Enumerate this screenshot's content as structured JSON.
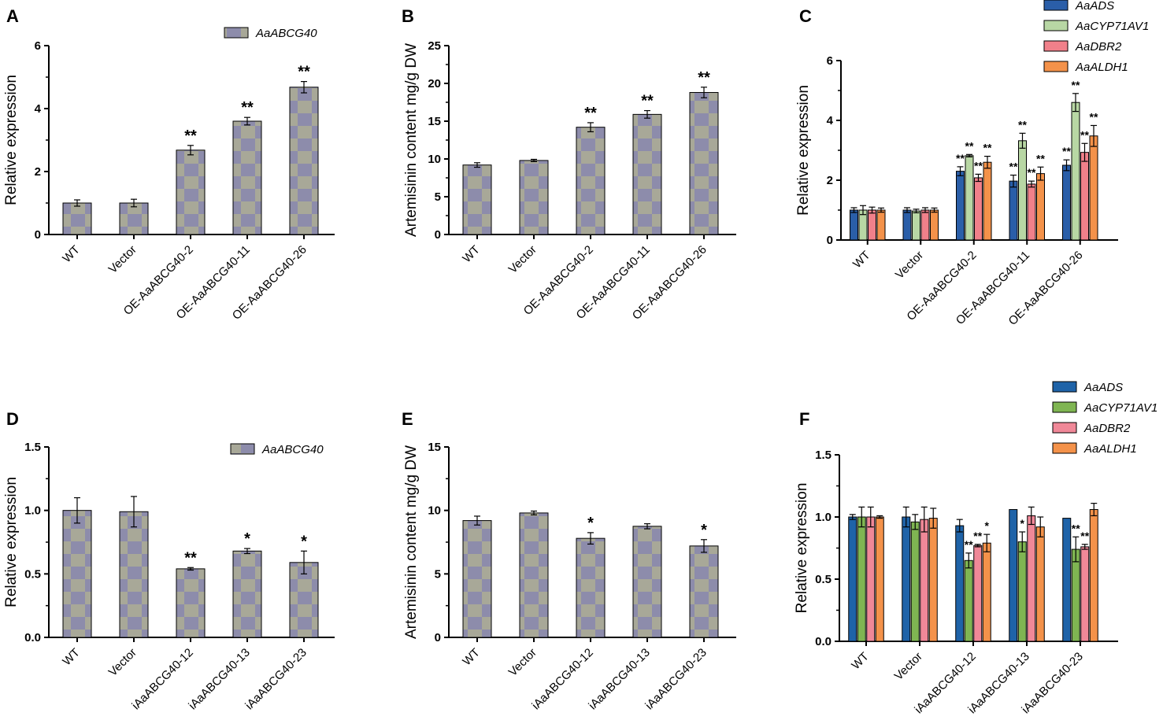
{
  "chart_data": [
    {
      "id": "A",
      "panel_label": "A",
      "type": "bar",
      "ylabel": "Relative expression",
      "ylim": [
        0,
        6
      ],
      "yticks": [
        0,
        2,
        4,
        6
      ],
      "categories": [
        "WT",
        "Vector",
        "OE-AaABCG40-2",
        "OE-AaABCG40-11",
        "OE-AaABCG40-26"
      ],
      "series": [
        {
          "name": "AaABCG40",
          "values": [
            1.0,
            1.0,
            2.68,
            3.6,
            4.68
          ],
          "errors": [
            0.1,
            0.12,
            0.15,
            0.12,
            0.18
          ],
          "sig": [
            "",
            "",
            "**",
            "**",
            "**"
          ],
          "color": "#a8a898"
        }
      ]
    },
    {
      "id": "B",
      "panel_label": "B",
      "type": "bar",
      "ylabel": "Artemisinin content mg/g DW",
      "ylim": [
        0,
        25
      ],
      "yticks": [
        0,
        5,
        10,
        15,
        20,
        25
      ],
      "categories": [
        "WT",
        "Vector",
        "OE-AaABCG40-2",
        "OE-AaABCG40-11",
        "OE-AaABCG40-26"
      ],
      "series": [
        {
          "name": "",
          "values": [
            9.2,
            9.8,
            14.2,
            15.9,
            18.8
          ],
          "errors": [
            0.3,
            0.15,
            0.6,
            0.5,
            0.7
          ],
          "sig": [
            "",
            "",
            "**",
            "**",
            "**"
          ],
          "color": "#a8a898"
        }
      ]
    },
    {
      "id": "C",
      "panel_label": "C",
      "type": "bar",
      "ylabel": "Relative expression",
      "ylim": [
        0,
        6
      ],
      "yticks": [
        0,
        2,
        4,
        6
      ],
      "categories": [
        "WT",
        "Vector",
        "OE-AaABCG40-2",
        "OE-AaABCG40-11",
        "OE-AaABCG40-26"
      ],
      "series": [
        {
          "name": "AaADS",
          "values": [
            1.0,
            1.0,
            2.3,
            1.97,
            2.5
          ],
          "errors": [
            0.08,
            0.08,
            0.15,
            0.2,
            0.18
          ],
          "sig": [
            "",
            "",
            "**",
            "**",
            "**"
          ],
          "color": "#2a5ea8"
        },
        {
          "name": "AaCYP71AV1",
          "values": [
            1.0,
            0.97,
            2.82,
            3.32,
            4.6
          ],
          "errors": [
            0.15,
            0.06,
            0.04,
            0.25,
            0.3
          ],
          "sig": [
            "",
            "",
            "**",
            "**",
            "**"
          ],
          "color": "#b8d7a4"
        },
        {
          "name": "AaDBR2",
          "values": [
            1.0,
            1.0,
            2.08,
            1.87,
            2.93
          ],
          "errors": [
            0.1,
            0.08,
            0.12,
            0.1,
            0.3
          ],
          "sig": [
            "",
            "",
            "**",
            "**",
            "**"
          ],
          "color": "#f0808a"
        },
        {
          "name": "AaALDH1",
          "values": [
            1.0,
            1.0,
            2.6,
            2.22,
            3.48
          ],
          "errors": [
            0.07,
            0.07,
            0.2,
            0.22,
            0.35
          ],
          "sig": [
            "",
            "",
            "**",
            "**",
            "**"
          ],
          "color": "#f4924a"
        }
      ]
    },
    {
      "id": "D",
      "panel_label": "D",
      "type": "bar",
      "ylabel": "Relative expression",
      "ylim": [
        0,
        1.5
      ],
      "yticks": [
        "0.0",
        "0.5",
        "1.0",
        "1.5"
      ],
      "categories": [
        "WT",
        "Vector",
        "iAaABCG40-12",
        "iAaABCG40-13",
        "iAaABCG40-23"
      ],
      "series": [
        {
          "name": "AaABCG40",
          "values": [
            1.0,
            0.99,
            0.54,
            0.68,
            0.59
          ],
          "errors": [
            0.1,
            0.12,
            0.01,
            0.02,
            0.09
          ],
          "sig": [
            "",
            "",
            "**",
            "*",
            "*"
          ],
          "color": "#a8a898"
        }
      ]
    },
    {
      "id": "E",
      "panel_label": "E",
      "type": "bar",
      "ylabel": "Artemisinin content mg/g DW",
      "ylim": [
        0,
        15
      ],
      "yticks": [
        0,
        5,
        10,
        15
      ],
      "categories": [
        "WT",
        "Vector",
        "iAaABCG40-12",
        "iAaABCG40-13",
        "iAaABCG40-23"
      ],
      "series": [
        {
          "name": "",
          "values": [
            9.2,
            9.8,
            7.8,
            8.75,
            7.2
          ],
          "errors": [
            0.35,
            0.15,
            0.45,
            0.2,
            0.5
          ],
          "sig": [
            "",
            "",
            "*",
            "",
            "*"
          ],
          "color": "#a8a898"
        }
      ]
    },
    {
      "id": "F",
      "panel_label": "F",
      "type": "bar",
      "ylabel": "Relative expression",
      "ylim": [
        0,
        1.5
      ],
      "yticks": [
        "0.0",
        "0.5",
        "1.0",
        "1.5"
      ],
      "categories": [
        "WT",
        "Vector",
        "iAaABCG40-12",
        "iAaABCG40-13",
        "iAaABCG40-23"
      ],
      "series": [
        {
          "name": "AaADS",
          "values": [
            1.0,
            1.0,
            0.93,
            1.06,
            0.99
          ],
          "errors": [
            0.02,
            0.08,
            0.05,
            0.0,
            0.0
          ],
          "sig": [
            "",
            "",
            "",
            "",
            ""
          ],
          "color": "#1f63a8"
        },
        {
          "name": "AaCYP71AV1",
          "values": [
            1.0,
            0.96,
            0.65,
            0.8,
            0.74
          ],
          "errors": [
            0.08,
            0.06,
            0.06,
            0.08,
            0.1
          ],
          "sig": [
            "",
            "",
            "**",
            "*",
            "**"
          ],
          "color": "#7fb552"
        },
        {
          "name": "AaDBR2",
          "values": [
            1.0,
            0.98,
            0.77,
            1.01,
            0.76
          ],
          "errors": [
            0.08,
            0.1,
            0.01,
            0.07,
            0.02
          ],
          "sig": [
            "",
            "",
            "**",
            "",
            "**"
          ],
          "color": "#f08898"
        },
        {
          "name": "AaALDH1",
          "values": [
            1.0,
            0.99,
            0.79,
            0.92,
            1.06
          ],
          "errors": [
            0.01,
            0.08,
            0.07,
            0.08,
            0.05
          ],
          "sig": [
            "",
            "",
            "*",
            "",
            ""
          ],
          "color": "#f4924a"
        }
      ]
    }
  ]
}
